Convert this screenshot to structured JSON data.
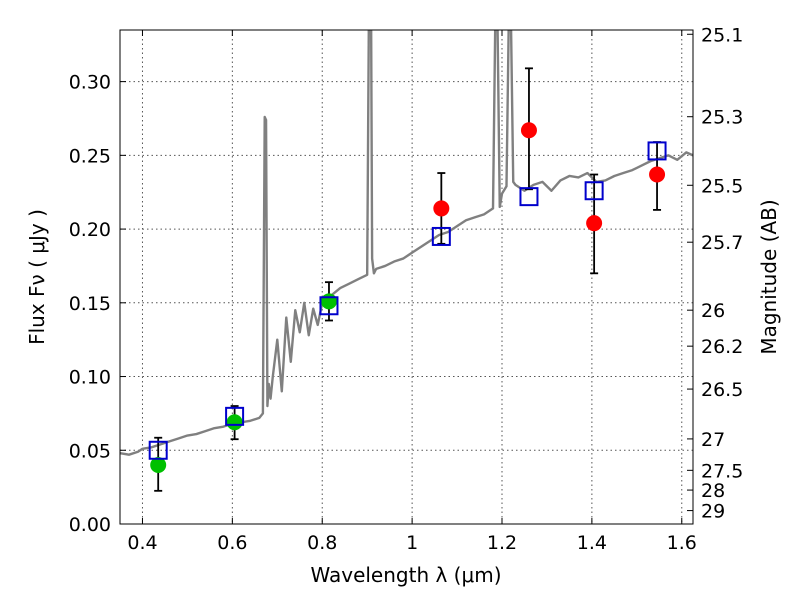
{
  "chart_data": {
    "type": "scatter",
    "xlabel": "Wavelength  λ (μm)",
    "ylabel": "Flux  Fν  ( μJy )",
    "ylabel_right": "Magnitude (AB)",
    "xlim": [
      0.35,
      1.625
    ],
    "ylim": [
      0.0,
      0.335
    ],
    "grid": true,
    "x_ticks": [
      0.4,
      0.6,
      0.8,
      1.0,
      1.2,
      1.4,
      1.6
    ],
    "x_tick_labels": [
      "0.4",
      "0.6",
      "0.8",
      "1",
      "1.2",
      "1.4",
      "1.6"
    ],
    "y_ticks": [
      0.0,
      0.05,
      0.1,
      0.15,
      0.2,
      0.25,
      0.3
    ],
    "y_tick_labels": [
      "0.00",
      "0.05",
      "0.10",
      "0.15",
      "0.20",
      "0.25",
      "0.30"
    ],
    "right_ticks": [
      {
        "label": "25.1",
        "flux": 0.3321
      },
      {
        "label": "25.3",
        "flux": 0.2762
      },
      {
        "label": "25.5",
        "flux": 0.2297
      },
      {
        "label": "25.7",
        "flux": 0.1911
      },
      {
        "label": "26",
        "flux": 0.145
      },
      {
        "label": "26.2",
        "flux": 0.1206
      },
      {
        "label": "26.5",
        "flux": 0.0915
      },
      {
        "label": "27",
        "flux": 0.0577
      },
      {
        "label": "27.5",
        "flux": 0.0364
      },
      {
        "label": "28",
        "flux": 0.023
      },
      {
        "label": "29",
        "flux": 0.0091
      }
    ],
    "colors": {
      "spectrum": "#808080",
      "green": "#00c000",
      "red": "#ff0000",
      "model_box": "#0000cc",
      "errorbar": "#000000",
      "grid": "#555555"
    },
    "series": [
      {
        "name": "spectrum",
        "style": "line",
        "x": [
          0.35,
          0.37,
          0.39,
          0.4,
          0.42,
          0.44,
          0.46,
          0.48,
          0.5,
          0.52,
          0.54,
          0.56,
          0.58,
          0.6,
          0.62,
          0.64,
          0.66,
          0.668,
          0.672,
          0.675,
          0.678,
          0.681,
          0.685,
          0.69,
          0.7,
          0.71,
          0.72,
          0.73,
          0.74,
          0.75,
          0.76,
          0.77,
          0.78,
          0.79,
          0.8,
          0.82,
          0.84,
          0.86,
          0.88,
          0.9,
          0.905,
          0.908,
          0.911,
          0.915,
          0.92,
          0.94,
          0.96,
          0.98,
          1.0,
          1.02,
          1.04,
          1.06,
          1.08,
          1.1,
          1.12,
          1.14,
          1.16,
          1.18,
          1.185,
          1.19,
          1.195,
          1.2,
          1.21,
          1.215,
          1.22,
          1.225,
          1.23,
          1.25,
          1.27,
          1.29,
          1.31,
          1.33,
          1.35,
          1.37,
          1.39,
          1.41,
          1.43,
          1.45,
          1.47,
          1.49,
          1.51,
          1.53,
          1.55,
          1.57,
          1.59,
          1.61,
          1.625
        ],
        "y": [
          0.048,
          0.047,
          0.049,
          0.051,
          0.052,
          0.054,
          0.056,
          0.058,
          0.06,
          0.061,
          0.063,
          0.065,
          0.066,
          0.068,
          0.069,
          0.07,
          0.072,
          0.075,
          0.276,
          0.274,
          0.08,
          0.095,
          0.085,
          0.1,
          0.125,
          0.09,
          0.14,
          0.11,
          0.145,
          0.13,
          0.15,
          0.128,
          0.146,
          0.135,
          0.15,
          0.155,
          0.16,
          0.163,
          0.166,
          0.169,
          0.4,
          0.4,
          0.18,
          0.17,
          0.173,
          0.175,
          0.178,
          0.18,
          0.184,
          0.188,
          0.192,
          0.196,
          0.198,
          0.202,
          0.206,
          0.208,
          0.21,
          0.214,
          0.34,
          0.34,
          0.215,
          0.224,
          0.229,
          0.34,
          0.34,
          0.232,
          0.23,
          0.226,
          0.23,
          0.232,
          0.226,
          0.233,
          0.236,
          0.235,
          0.238,
          0.232,
          0.233,
          0.236,
          0.238,
          0.24,
          0.243,
          0.246,
          0.248,
          0.25,
          0.247,
          0.252,
          0.25
        ]
      },
      {
        "name": "green observations",
        "style": "dot",
        "color": "green",
        "points": [
          {
            "x": 0.435,
            "y": 0.04,
            "err_lo": 0.0225,
            "err_hi": 0.0585
          },
          {
            "x": 0.605,
            "y": 0.069,
            "err_lo": 0.0575,
            "err_hi": 0.08
          },
          {
            "x": 0.815,
            "y": 0.151,
            "err_lo": 0.138,
            "err_hi": 0.164
          }
        ]
      },
      {
        "name": "red observations",
        "style": "dot",
        "color": "red",
        "points": [
          {
            "x": 1.065,
            "y": 0.214,
            "err_lo": 0.19,
            "err_hi": 0.238
          },
          {
            "x": 1.26,
            "y": 0.267,
            "err_lo": 0.227,
            "err_hi": 0.309
          },
          {
            "x": 1.405,
            "y": 0.204,
            "err_lo": 0.17,
            "err_hi": 0.237
          },
          {
            "x": 1.545,
            "y": 0.237,
            "err_lo": 0.213,
            "err_hi": 0.259
          }
        ]
      },
      {
        "name": "model photometry",
        "style": "open-square",
        "color": "model_box",
        "points": [
          {
            "x": 0.435,
            "y": 0.05
          },
          {
            "x": 0.605,
            "y": 0.073
          },
          {
            "x": 0.815,
            "y": 0.148
          },
          {
            "x": 1.065,
            "y": 0.195
          },
          {
            "x": 1.26,
            "y": 0.222
          },
          {
            "x": 1.405,
            "y": 0.226
          },
          {
            "x": 1.545,
            "y": 0.253
          }
        ]
      }
    ]
  }
}
